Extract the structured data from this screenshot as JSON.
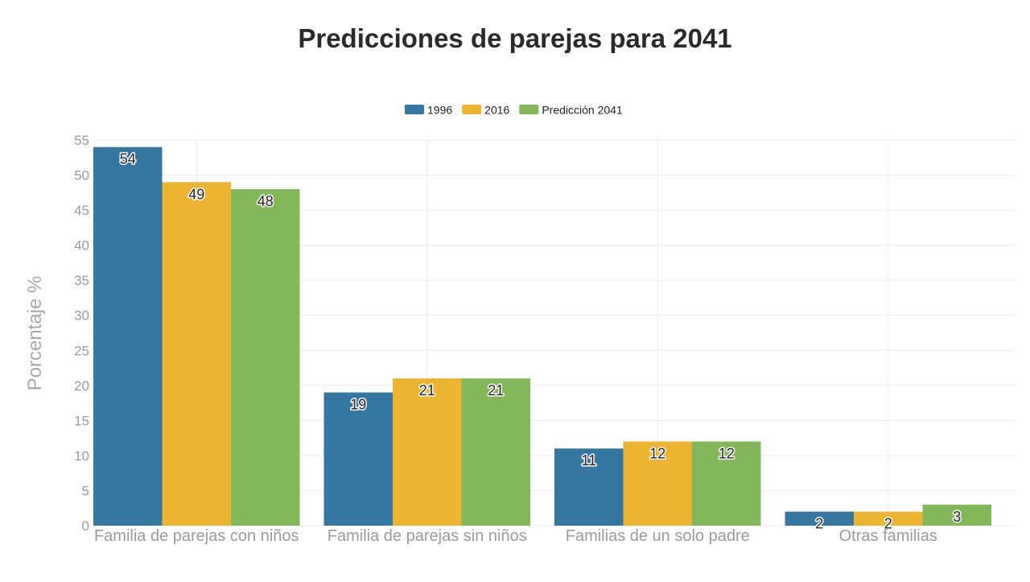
{
  "chart_data": {
    "type": "bar",
    "title": "Predicciones de parejas para 2041",
    "xlabel": "",
    "ylabel": "Porcentaje %",
    "ylim": [
      0,
      55
    ],
    "yticks": [
      0,
      5,
      10,
      15,
      20,
      25,
      30,
      35,
      40,
      45,
      50,
      55
    ],
    "grid": true,
    "legend_position": "top-center",
    "categories": [
      "Familia de parejas con niños",
      "Familia de parejas sin niños",
      "Familias de un solo padre",
      "Otras familias"
    ],
    "series": [
      {
        "name": "1996",
        "color": "#3577a0",
        "values": [
          54,
          19,
          11,
          2
        ]
      },
      {
        "name": "2016",
        "color": "#ecb431",
        "values": [
          49,
          21,
          12,
          2
        ]
      },
      {
        "name": "Predicción 2041",
        "color": "#82b85a",
        "values": [
          48,
          21,
          12,
          3
        ]
      }
    ]
  }
}
